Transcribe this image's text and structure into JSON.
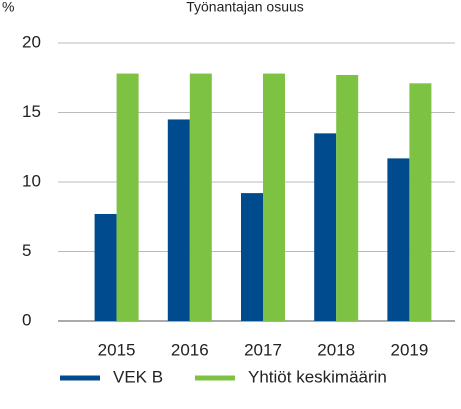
{
  "chart_data": {
    "type": "bar",
    "title": "Työnantajan osuus",
    "y_label": "%",
    "categories": [
      "2015",
      "2016",
      "2017",
      "2018",
      "2019"
    ],
    "series": [
      {
        "name": "VEK B",
        "color": "#004b8d",
        "values": [
          7.7,
          14.5,
          9.2,
          13.5,
          11.7
        ]
      },
      {
        "name": "Yhtiöt keskimäärin",
        "color": "#7dc242",
        "values": [
          17.8,
          17.8,
          17.8,
          17.7,
          17.1
        ]
      }
    ],
    "ylim": [
      0,
      20
    ],
    "yticks": [
      0,
      5,
      10,
      15,
      20
    ],
    "grid": true,
    "legend": "bottom"
  }
}
